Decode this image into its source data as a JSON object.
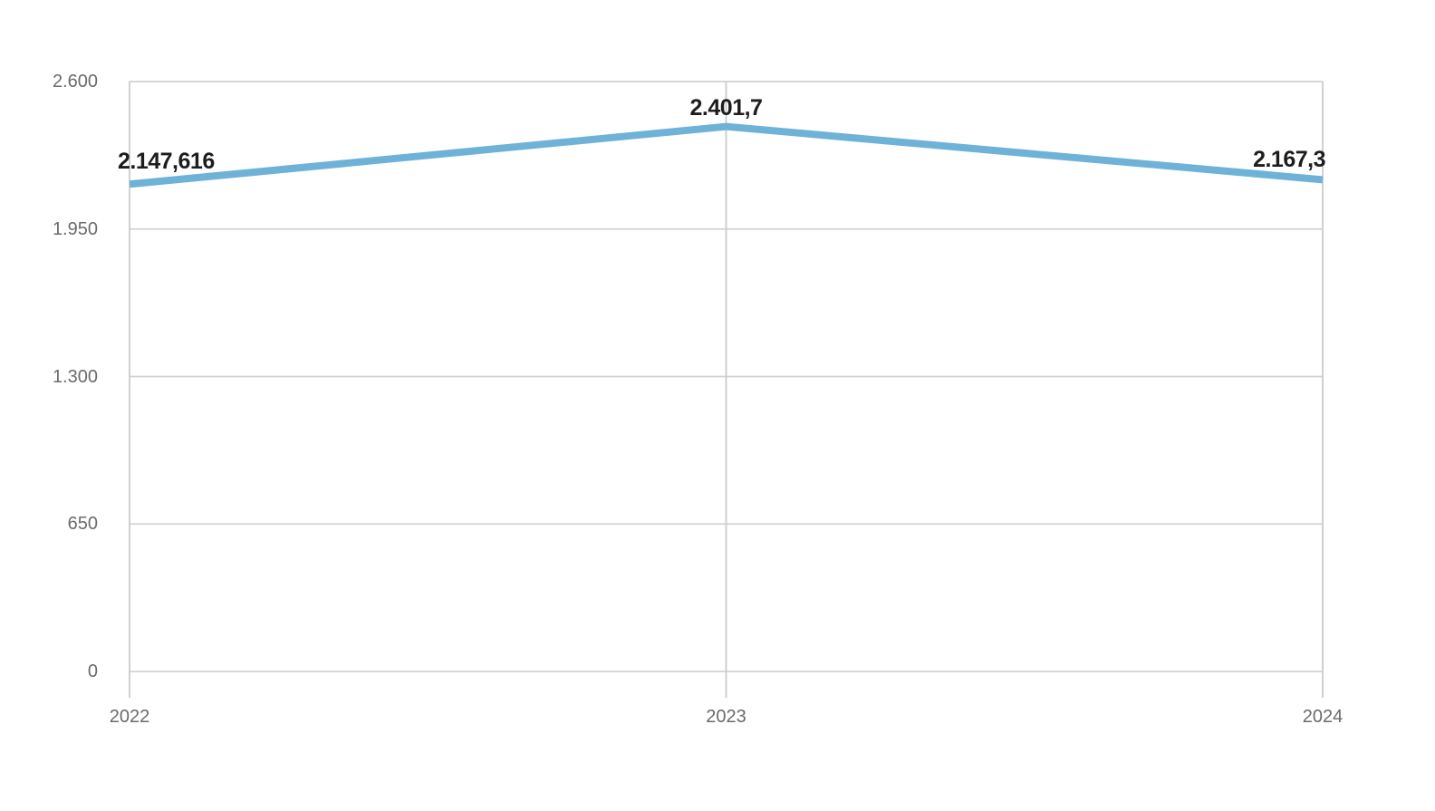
{
  "chart_data": {
    "type": "line",
    "categories": [
      "2022",
      "2023",
      "2024"
    ],
    "series": [
      {
        "name": "value",
        "values": [
          2147.616,
          2401.7,
          2167.3
        ],
        "point_labels": [
          "2.147,616",
          "2.401,7",
          "2.167,3"
        ]
      }
    ],
    "title": "",
    "xlabel": "",
    "ylabel": "",
    "ylim": [
      0,
      2600
    ],
    "y_ticks": [
      {
        "value": 2600,
        "label": "2.600"
      },
      {
        "value": 1950,
        "label": "1.950"
      },
      {
        "value": 1300,
        "label": "1.300"
      },
      {
        "value": 650,
        "label": "650"
      },
      {
        "value": 0,
        "label": "0"
      }
    ],
    "grid": "on",
    "legend": "none",
    "colors": {
      "line": "#6fb2d8",
      "gridline_h": "#d2d2d2",
      "gridline_v": "#cccccc",
      "tick_label": "#6b6b6b",
      "data_label": "#1d1d1d",
      "background": "#ffffff"
    }
  }
}
